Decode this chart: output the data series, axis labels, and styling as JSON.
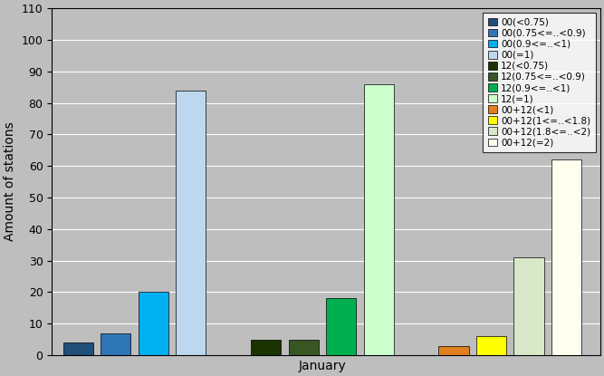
{
  "xlabel": "January",
  "ylabel": "Amount of stations",
  "ylim": [
    0,
    110
  ],
  "yticks": [
    0,
    10,
    20,
    30,
    40,
    50,
    60,
    70,
    80,
    90,
    100,
    110
  ],
  "background_color": "#bebebe",
  "bar_width": 0.8,
  "x_positions": [
    0,
    1,
    2,
    3,
    5,
    6,
    7,
    8,
    10,
    11,
    12,
    13
  ],
  "series": [
    {
      "label": "00(<0.75)",
      "color": "#1f4e79",
      "value": 4
    },
    {
      "label": "00(0.75<=..<0.9)",
      "color": "#2e75b6",
      "value": 7
    },
    {
      "label": "00(0.9<=..<1)",
      "color": "#00b0f0",
      "value": 20
    },
    {
      "label": "00(=1)",
      "color": "#bdd7ee",
      "value": 84
    },
    {
      "label": "12(<0.75)",
      "color": "#1a3300",
      "value": 5
    },
    {
      "label": "12(0.75<=..<0.9)",
      "color": "#375623",
      "value": 5
    },
    {
      "label": "12(0.9<=..<1)",
      "color": "#00b050",
      "value": 18
    },
    {
      "label": "12(=1)",
      "color": "#ccffcc",
      "value": 86
    },
    {
      "label": "00+12(<1)",
      "color": "#e08020",
      "value": 3
    },
    {
      "label": "00+12(1<=..<1.8)",
      "color": "#ffff00",
      "value": 6
    },
    {
      "label": "00+12(1.8<=..<2)",
      "color": "#d8e8c8",
      "value": 31
    },
    {
      "label": "00+12(=2)",
      "color": "#fffff0",
      "value": 62
    }
  ],
  "xlim_left": -0.7,
  "xlim_right": 13.9,
  "legend_fontsize": 7.5,
  "ylabel_fontsize": 10,
  "xlabel_fontsize": 10
}
